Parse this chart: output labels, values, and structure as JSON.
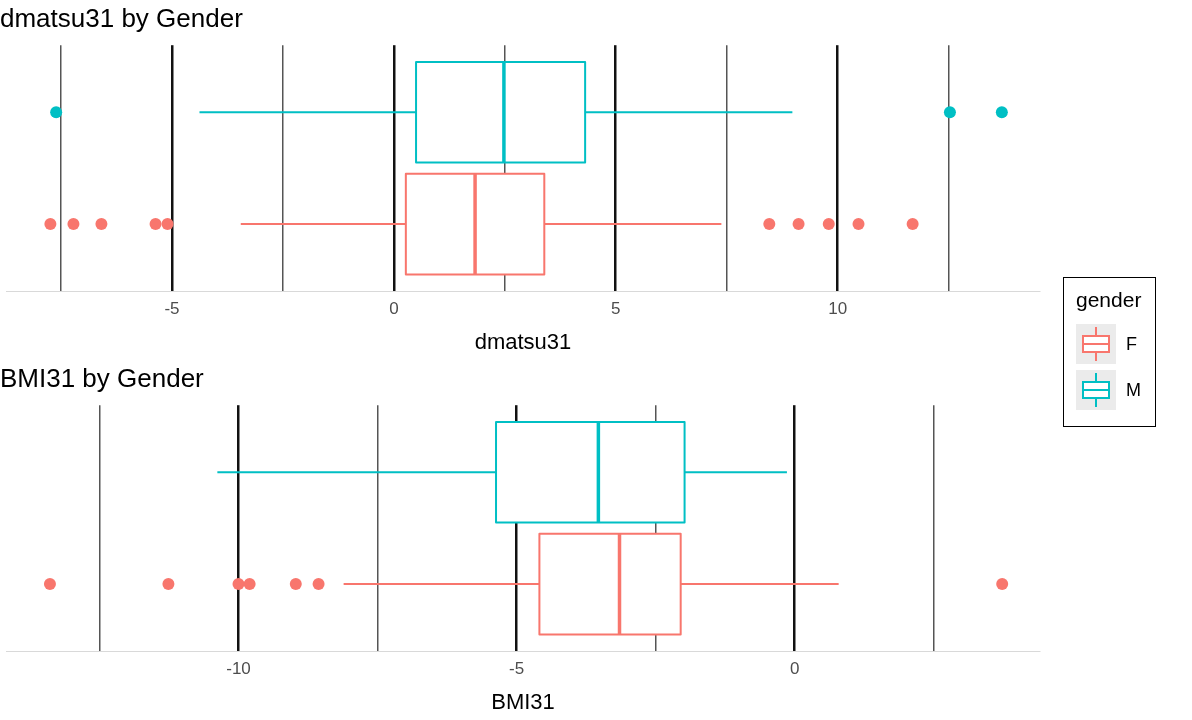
{
  "chart_data": [
    {
      "type": "box",
      "title": "dmatsu31 by Gender",
      "xlabel": "dmatsu31",
      "orientation": "horizontal",
      "categories": [
        null,
        null
      ],
      "grid": "x",
      "tick_labels": "x",
      "legend": "right",
      "legend_title": "gender",
      "xlim": [
        -8.74,
        14.56
      ],
      "xticks": [
        {
          "value": -7.5,
          "label": null
        },
        -5,
        {
          "value": -2.5,
          "label": null
        },
        0,
        {
          "value": 2.5,
          "label": null
        },
        5,
        {
          "value": 7.5,
          "label": null
        },
        10,
        {
          "value": 12.5,
          "label": null
        }
      ],
      "series": [
        {
          "name": "F",
          "color": "#f8766d",
          "boxes": [
            null,
            {
              "low": -3.45,
              "q1": 0.27,
              "median": 1.83,
              "q3": 3.39,
              "high": 7.38,
              "outliers": [
                -7.74,
                -7.22,
                -6.59,
                -5.37,
                -5.1,
                8.46,
                9.12,
                9.8,
                10.47,
                11.69
              ]
            }
          ]
        },
        {
          "name": "M",
          "color": "#00bfc4",
          "boxes": [
            {
              "low": -4.38,
              "q1": 0.5,
              "median": 2.48,
              "q3": 4.31,
              "high": 8.98,
              "outliers": [
                -7.61,
                12.53,
                13.7
              ]
            },
            null
          ]
        }
      ]
    },
    {
      "type": "box",
      "title": "BMI31 by Gender",
      "xlabel": "BMI31",
      "orientation": "horizontal",
      "categories": [
        null,
        null
      ],
      "grid": "x",
      "tick_labels": "x",
      "xlim": [
        -14.18,
        4.41
      ],
      "xticks": [
        {
          "value": -12.5,
          "label": null
        },
        -10,
        {
          "value": -7.5,
          "label": null
        },
        -5,
        {
          "value": -2.5,
          "label": null
        },
        0,
        {
          "value": 2.5,
          "label": null
        }
      ],
      "series": [
        {
          "color": "#f8766d",
          "boxes": [
            null,
            {
              "low": -8.11,
              "q1": -4.59,
              "median": -3.15,
              "q3": -2.05,
              "high": 0.79,
              "outliers": [
                -13.39,
                -11.26,
                -10.0,
                -9.8,
                -8.97,
                -8.56,
                3.73
              ]
            }
          ]
        },
        {
          "color": "#00bfc4",
          "boxes": [
            {
              "low": -10.38,
              "q1": -5.37,
              "median": -3.53,
              "q3": -1.98,
              "high": -0.14
            },
            null
          ]
        }
      ]
    }
  ]
}
